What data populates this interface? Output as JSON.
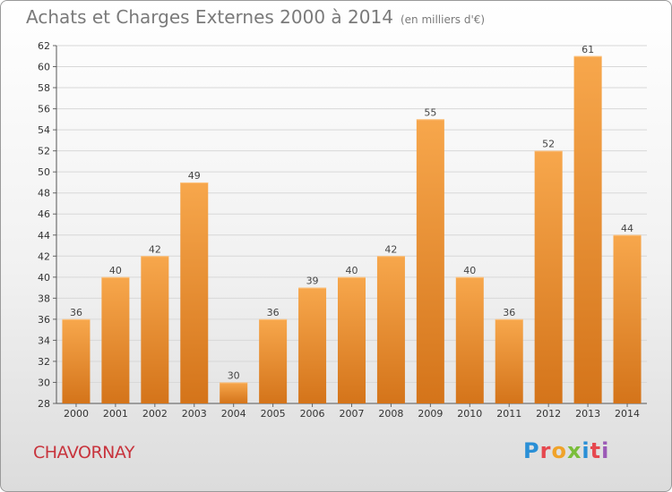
{
  "header": {
    "title": "Achats et Charges Externes 2000 à 2014",
    "subtitle": "(en milliers d'€)"
  },
  "footer": {
    "commune": "CHAVORNAY",
    "logo_letters": [
      "P",
      "r",
      "o",
      "x",
      "i",
      "t",
      "i"
    ]
  },
  "colors": {
    "bar_light": "#f7a74c",
    "bar_dark": "#d4741a",
    "grid": "#d8d8d8",
    "title": "#7a7a7a",
    "commune": "#c8343d"
  },
  "chart_data": {
    "type": "bar",
    "title": "Achats et Charges Externes 2000 à 2014",
    "subtitle": "(en milliers d'€)",
    "xlabel": "",
    "ylabel": "",
    "categories": [
      "2000",
      "2001",
      "2002",
      "2003",
      "2004",
      "2005",
      "2006",
      "2007",
      "2008",
      "2009",
      "2010",
      "2011",
      "2012",
      "2013",
      "2014"
    ],
    "values": [
      36,
      40,
      42,
      49,
      30,
      36,
      39,
      40,
      42,
      55,
      40,
      36,
      52,
      61,
      44
    ],
    "ylim": [
      28,
      62
    ],
    "yticks": [
      28,
      30,
      32,
      34,
      36,
      38,
      40,
      42,
      44,
      46,
      48,
      50,
      52,
      54,
      56,
      58,
      60,
      62
    ],
    "grid": true,
    "data_labels": true
  }
}
